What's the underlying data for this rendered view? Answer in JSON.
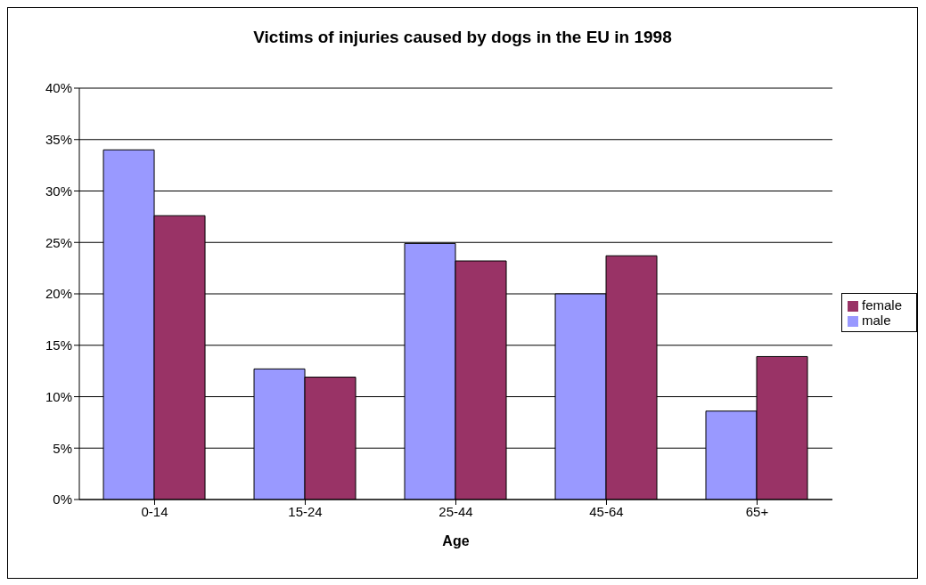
{
  "chart_data": {
    "type": "bar",
    "title": "Victims of injuries caused by dogs in the EU in 1998",
    "xlabel": "Age",
    "categories": [
      "0-14",
      "15-24",
      "25-44",
      "45-64",
      "65+"
    ],
    "series": [
      {
        "name": "male",
        "color": "#9999ff",
        "values": [
          34,
          12.7,
          24.9,
          20,
          8.6
        ]
      },
      {
        "name": "female",
        "color": "#993366",
        "values": [
          27.6,
          11.9,
          23.2,
          23.7,
          13.9
        ]
      }
    ],
    "ylim": [
      0,
      40
    ],
    "yticks": [
      {
        "value": 0,
        "label": "0%"
      },
      {
        "value": 5,
        "label": "5%"
      },
      {
        "value": 10,
        "label": "10%"
      },
      {
        "value": 15,
        "label": "15%"
      },
      {
        "value": 20,
        "label": "20%"
      },
      {
        "value": 25,
        "label": "25%"
      },
      {
        "value": 30,
        "label": "30%"
      },
      {
        "value": 35,
        "label": "35%"
      },
      {
        "value": 40,
        "label": "40%"
      }
    ],
    "grid": "y",
    "legend": "right"
  }
}
